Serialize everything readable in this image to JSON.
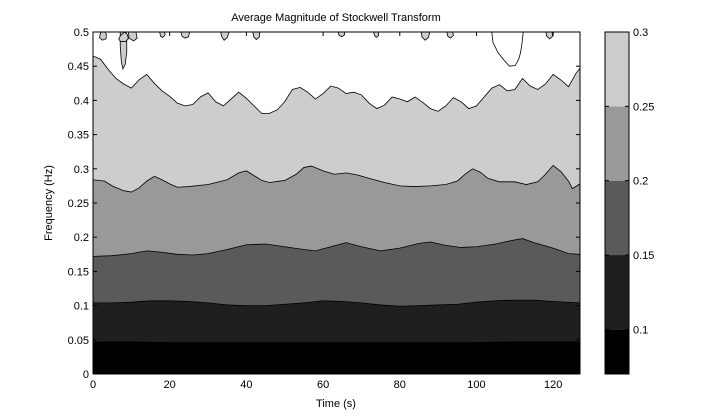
{
  "chart_data": {
    "type": "contour",
    "title": "Average Magnitude of Stockwell Transform",
    "xlabel": "Time (s)",
    "ylabel": "Frequency (Hz)",
    "xlim": [
      0,
      127
    ],
    "ylim": [
      0,
      0.5
    ],
    "xticks": [
      0,
      20,
      40,
      60,
      80,
      100,
      120
    ],
    "xtick_labels": [
      "0",
      "20",
      "40",
      "60",
      "80",
      "100",
      "120"
    ],
    "yticks": [
      0,
      0.05,
      0.1,
      0.15,
      0.2,
      0.25,
      0.3,
      0.35,
      0.4,
      0.45,
      0.5
    ],
    "ytick_labels": [
      "0",
      "0.05",
      "0.1",
      "0.15",
      "0.2",
      "0.25",
      "0.3",
      "0.35",
      "0.4",
      "0.45",
      "0.5"
    ],
    "colorbar": {
      "range": [
        0.07,
        0.3
      ],
      "ticks": [
        0.1,
        0.15,
        0.2,
        0.25,
        0.3
      ],
      "tick_labels": [
        "0.1",
        "0.15",
        "0.2",
        "0.25",
        "0.3"
      ],
      "colormap": "gray"
    },
    "levels": [
      0.07,
      0.1,
      0.15,
      0.2,
      0.25,
      0.3
    ],
    "bands": [
      {
        "level_range": [
          0.07,
          0.1
        ],
        "color": "#000000"
      },
      {
        "level_range": [
          0.1,
          0.15
        ],
        "color": "#1f1f1f"
      },
      {
        "level_range": [
          0.15,
          0.2
        ],
        "color": "#5a5a5a"
      },
      {
        "level_range": [
          0.2,
          0.25
        ],
        "color": "#999999"
      },
      {
        "level_range": [
          0.25,
          0.3
        ],
        "color": "#cdcdcd"
      },
      {
        "level_range": [
          0.3,
          0.35
        ],
        "color": "#ffffff"
      }
    ],
    "contours": [
      {
        "level": 0.1,
        "points": [
          [
            0,
            0.047
          ],
          [
            10,
            0.047
          ],
          [
            20,
            0.046
          ],
          [
            30,
            0.046
          ],
          [
            40,
            0.046
          ],
          [
            50,
            0.046
          ],
          [
            60,
            0.046
          ],
          [
            70,
            0.046
          ],
          [
            80,
            0.046
          ],
          [
            90,
            0.046
          ],
          [
            100,
            0.046
          ],
          [
            110,
            0.047
          ],
          [
            120,
            0.047
          ],
          [
            127,
            0.047
          ]
        ]
      },
      {
        "level": 0.15,
        "points": [
          [
            0,
            0.104
          ],
          [
            5,
            0.104
          ],
          [
            10,
            0.105
          ],
          [
            15,
            0.107
          ],
          [
            20,
            0.107
          ],
          [
            25,
            0.106
          ],
          [
            30,
            0.104
          ],
          [
            35,
            0.101
          ],
          [
            40,
            0.1
          ],
          [
            45,
            0.1
          ],
          [
            50,
            0.102
          ],
          [
            55,
            0.104
          ],
          [
            60,
            0.107
          ],
          [
            65,
            0.106
          ],
          [
            70,
            0.104
          ],
          [
            75,
            0.101
          ],
          [
            80,
            0.099
          ],
          [
            85,
            0.1
          ],
          [
            90,
            0.101
          ],
          [
            95,
            0.102
          ],
          [
            100,
            0.105
          ],
          [
            105,
            0.107
          ],
          [
            110,
            0.108
          ],
          [
            115,
            0.108
          ],
          [
            120,
            0.106
          ],
          [
            127,
            0.104
          ]
        ]
      },
      {
        "level": 0.2,
        "points": [
          [
            0,
            0.172
          ],
          [
            5,
            0.173
          ],
          [
            10,
            0.176
          ],
          [
            14,
            0.18
          ],
          [
            18,
            0.178
          ],
          [
            22,
            0.175
          ],
          [
            26,
            0.174
          ],
          [
            30,
            0.176
          ],
          [
            35,
            0.182
          ],
          [
            40,
            0.189
          ],
          [
            45,
            0.19
          ],
          [
            50,
            0.186
          ],
          [
            55,
            0.182
          ],
          [
            58,
            0.18
          ],
          [
            62,
            0.186
          ],
          [
            66,
            0.192
          ],
          [
            70,
            0.186
          ],
          [
            75,
            0.18
          ],
          [
            80,
            0.184
          ],
          [
            85,
            0.191
          ],
          [
            88,
            0.193
          ],
          [
            92,
            0.188
          ],
          [
            96,
            0.185
          ],
          [
            100,
            0.186
          ],
          [
            105,
            0.19
          ],
          [
            109,
            0.195
          ],
          [
            112,
            0.198
          ],
          [
            115,
            0.192
          ],
          [
            120,
            0.184
          ],
          [
            124,
            0.176
          ],
          [
            127,
            0.175
          ]
        ]
      },
      {
        "level": 0.25,
        "points": [
          [
            0,
            0.284
          ],
          [
            3,
            0.282
          ],
          [
            5,
            0.275
          ],
          [
            8,
            0.268
          ],
          [
            10,
            0.266
          ],
          [
            12,
            0.272
          ],
          [
            14,
            0.282
          ],
          [
            16,
            0.289
          ],
          [
            18,
            0.284
          ],
          [
            20,
            0.278
          ],
          [
            22,
            0.273
          ],
          [
            25,
            0.274
          ],
          [
            30,
            0.277
          ],
          [
            35,
            0.284
          ],
          [
            38,
            0.294
          ],
          [
            40,
            0.297
          ],
          [
            42,
            0.29
          ],
          [
            44,
            0.283
          ],
          [
            46,
            0.28
          ],
          [
            50,
            0.283
          ],
          [
            53,
            0.292
          ],
          [
            55,
            0.302
          ],
          [
            57,
            0.304
          ],
          [
            60,
            0.297
          ],
          [
            63,
            0.292
          ],
          [
            66,
            0.294
          ],
          [
            69,
            0.291
          ],
          [
            72,
            0.286
          ],
          [
            76,
            0.28
          ],
          [
            80,
            0.275
          ],
          [
            84,
            0.274
          ],
          [
            88,
            0.275
          ],
          [
            92,
            0.277
          ],
          [
            95,
            0.282
          ],
          [
            97,
            0.292
          ],
          [
            99,
            0.3
          ],
          [
            101,
            0.295
          ],
          [
            103,
            0.286
          ],
          [
            106,
            0.281
          ],
          [
            110,
            0.281
          ],
          [
            113,
            0.277
          ],
          [
            116,
            0.281
          ],
          [
            118,
            0.292
          ],
          [
            120,
            0.305
          ],
          [
            122,
            0.296
          ],
          [
            124,
            0.282
          ],
          [
            125,
            0.271
          ],
          [
            127,
            0.278
          ]
        ]
      },
      {
        "level": 0.3,
        "points": [
          [
            0,
            0.465
          ],
          [
            2,
            0.46
          ],
          [
            4,
            0.445
          ],
          [
            6,
            0.432
          ],
          [
            8,
            0.424
          ],
          [
            10,
            0.418
          ],
          [
            12,
            0.43
          ],
          [
            14,
            0.438
          ],
          [
            16,
            0.425
          ],
          [
            18,
            0.414
          ],
          [
            20,
            0.406
          ],
          [
            22,
            0.396
          ],
          [
            24,
            0.392
          ],
          [
            26,
            0.394
          ],
          [
            28,
            0.405
          ],
          [
            30,
            0.411
          ],
          [
            32,
            0.398
          ],
          [
            34,
            0.392
          ],
          [
            36,
            0.402
          ],
          [
            38,
            0.412
          ],
          [
            40,
            0.403
          ],
          [
            42,
            0.392
          ],
          [
            44,
            0.381
          ],
          [
            46,
            0.381
          ],
          [
            48,
            0.386
          ],
          [
            50,
            0.398
          ],
          [
            52,
            0.416
          ],
          [
            54,
            0.419
          ],
          [
            56,
            0.412
          ],
          [
            58,
            0.402
          ],
          [
            60,
            0.41
          ],
          [
            62,
            0.421
          ],
          [
            64,
            0.418
          ],
          [
            66,
            0.41
          ],
          [
            68,
            0.412
          ],
          [
            70,
            0.408
          ],
          [
            72,
            0.396
          ],
          [
            74,
            0.388
          ],
          [
            76,
            0.393
          ],
          [
            78,
            0.405
          ],
          [
            80,
            0.402
          ],
          [
            82,
            0.398
          ],
          [
            84,
            0.405
          ],
          [
            86,
            0.397
          ],
          [
            88,
            0.388
          ],
          [
            90,
            0.384
          ],
          [
            92,
            0.392
          ],
          [
            94,
            0.404
          ],
          [
            96,
            0.398
          ],
          [
            98,
            0.388
          ],
          [
            100,
            0.392
          ],
          [
            102,
            0.405
          ],
          [
            104,
            0.418
          ],
          [
            106,
            0.423
          ],
          [
            108,
            0.414
          ],
          [
            110,
            0.416
          ],
          [
            112,
            0.432
          ],
          [
            114,
            0.421
          ],
          [
            116,
            0.416
          ],
          [
            118,
            0.424
          ],
          [
            120,
            0.438
          ],
          [
            122,
            0.43
          ],
          [
            124,
            0.42
          ],
          [
            126,
            0.44
          ],
          [
            127,
            0.447
          ]
        ]
      }
    ],
    "islands_high": [
      {
        "level": 0.3,
        "points": [
          [
            104,
            0.5
          ],
          [
            104.3,
            0.485
          ],
          [
            105.6,
            0.47
          ],
          [
            107.3,
            0.458
          ],
          [
            108.6,
            0.45
          ],
          [
            110.1,
            0.451
          ],
          [
            111,
            0.46
          ],
          [
            111.5,
            0.47
          ],
          [
            111.9,
            0.485
          ],
          [
            112.2,
            0.5
          ]
        ]
      }
    ],
    "islands_low": [
      {
        "level": 0.3,
        "points": [
          [
            7.1,
            0.5
          ],
          [
            7.1,
            0.48
          ],
          [
            7.4,
            0.456
          ],
          [
            7.8,
            0.446
          ],
          [
            8.4,
            0.453
          ],
          [
            8.8,
            0.47
          ],
          [
            8.8,
            0.485
          ],
          [
            8.6,
            0.5
          ]
        ]
      },
      {
        "level": 0.3,
        "points": [
          [
            8.2,
            0.5
          ],
          [
            7.2,
            0.495
          ],
          [
            6.7,
            0.49
          ],
          [
            7.2,
            0.486
          ],
          [
            8.5,
            0.486
          ],
          [
            9.2,
            0.49
          ],
          [
            9.0,
            0.496
          ]
        ]
      },
      {
        "level": 0.3,
        "points": [
          [
            9.2,
            0.5
          ],
          [
            9.4,
            0.491
          ],
          [
            10.6,
            0.487
          ],
          [
            11.5,
            0.491
          ],
          [
            11.2,
            0.5
          ]
        ]
      },
      {
        "level": 0.3,
        "points": [
          [
            2,
            0.5
          ],
          [
            1.7,
            0.492
          ],
          [
            2.4,
            0.488
          ],
          [
            3.4,
            0.49
          ],
          [
            3.5,
            0.496
          ],
          [
            3.2,
            0.5
          ]
        ]
      },
      {
        "level": 0.3,
        "points": [
          [
            17.4,
            0.5
          ],
          [
            17.6,
            0.494
          ],
          [
            18.2,
            0.492
          ],
          [
            18.8,
            0.496
          ],
          [
            18.7,
            0.5
          ]
        ]
      },
      {
        "level": 0.3,
        "points": [
          [
            22.9,
            0.5
          ],
          [
            23.2,
            0.494
          ],
          [
            24.0,
            0.491
          ],
          [
            24.9,
            0.493
          ],
          [
            25.2,
            0.5
          ]
        ]
      },
      {
        "level": 0.3,
        "points": [
          [
            33.3,
            0.5
          ],
          [
            33.6,
            0.493
          ],
          [
            34.2,
            0.488
          ],
          [
            35.0,
            0.492
          ],
          [
            35.5,
            0.5
          ]
        ]
      },
      {
        "level": 0.3,
        "points": [
          [
            41.7,
            0.5
          ],
          [
            41.9,
            0.493
          ],
          [
            42.6,
            0.489
          ],
          [
            43.4,
            0.493
          ],
          [
            43.5,
            0.5
          ]
        ]
      },
      {
        "level": 0.3,
        "points": [
          [
            63.9,
            0.5
          ],
          [
            64.2,
            0.495
          ],
          [
            64.9,
            0.493
          ],
          [
            65.6,
            0.496
          ],
          [
            65.6,
            0.5
          ]
        ]
      },
      {
        "level": 0.3,
        "points": [
          [
            73.2,
            0.5
          ],
          [
            73.4,
            0.495
          ],
          [
            73.9,
            0.492
          ],
          [
            74.5,
            0.495
          ],
          [
            74.4,
            0.5
          ]
        ]
      },
      {
        "level": 0.3,
        "points": [
          [
            85.6,
            0.5
          ],
          [
            85.8,
            0.493
          ],
          [
            86.6,
            0.488
          ],
          [
            87.5,
            0.492
          ],
          [
            87.8,
            0.5
          ]
        ]
      },
      {
        "level": 0.3,
        "points": [
          [
            92.3,
            0.5
          ],
          [
            92.5,
            0.494
          ],
          [
            93.2,
            0.491
          ],
          [
            94.0,
            0.495
          ],
          [
            93.8,
            0.5
          ]
        ]
      },
      {
        "level": 0.3,
        "points": [
          [
            118.1,
            0.5
          ],
          [
            118.3,
            0.494
          ],
          [
            119.1,
            0.49
          ],
          [
            119.9,
            0.494
          ],
          [
            119.7,
            0.5
          ]
        ]
      }
    ]
  }
}
